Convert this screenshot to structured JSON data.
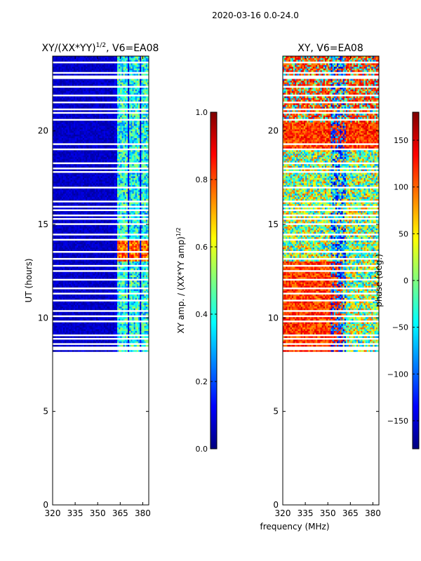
{
  "suptitle": "2020-03-16 0.0-24.0",
  "xlabel_shared": "frequency (MHz)",
  "chart_data": [
    {
      "type": "heatmap",
      "title_main": "XY/(XX*YY)",
      "title_sup": "1/2",
      "title_suffix": ", V6=EA08",
      "ylabel": "UT (hours)",
      "x_ticks": [
        320,
        335,
        350,
        365,
        380
      ],
      "x_tick_labels": [
        "320",
        "335",
        "350",
        "365",
        "380"
      ],
      "xlim": [
        320,
        384
      ],
      "y_ticks": [
        0,
        5,
        10,
        15,
        20
      ],
      "y_tick_labels": [
        "0",
        "5",
        "10",
        "15",
        "20"
      ],
      "ylim": [
        0,
        24
      ],
      "data_ut_range": [
        8.2,
        24.0
      ],
      "colorbar": {
        "label_main": "XY amp. / (XX*YY amp)",
        "label_sup": "1/2",
        "ticks": [
          0.0,
          0.2,
          0.4,
          0.6,
          0.8,
          1.0
        ],
        "tick_labels": [
          "0.0",
          "0.2",
          "0.4",
          "0.6",
          "0.8",
          "1.0"
        ],
        "range": [
          0,
          1
        ]
      }
    },
    {
      "type": "heatmap",
      "title": "XY, V6=EA08",
      "x_ticks": [
        320,
        335,
        350,
        365,
        380
      ],
      "x_tick_labels": [
        "320",
        "335",
        "350",
        "365",
        "380"
      ],
      "xlim": [
        320,
        384
      ],
      "y_ticks": [
        0,
        5,
        10,
        15,
        20
      ],
      "y_tick_labels": [
        "0",
        "5",
        "10",
        "15",
        "20"
      ],
      "ylim": [
        0,
        24
      ],
      "data_ut_range": [
        8.2,
        24.0
      ],
      "colorbar": {
        "label": "phase (deg.)",
        "ticks": [
          -150,
          -100,
          -50,
          0,
          50,
          100,
          150
        ],
        "tick_labels": [
          "−150",
          "−100",
          "−50",
          "0",
          "50",
          "100",
          "150"
        ],
        "range": [
          -180,
          180
        ]
      }
    }
  ],
  "colormap": [
    "#00007f",
    "#0000ff",
    "#007fff",
    "#00ffff",
    "#7fff7f",
    "#ffff00",
    "#ff7f00",
    "#ff0000",
    "#7f0000"
  ]
}
